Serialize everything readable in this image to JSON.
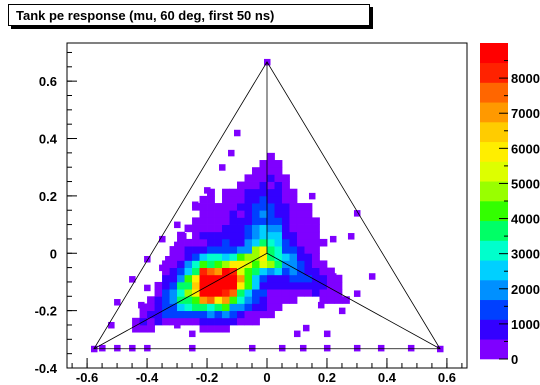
{
  "chart_data": {
    "type": "heatmap",
    "title": "Tank pe response (mu, 60 deg, first 50 ns)",
    "xlabel": "",
    "ylabel": "",
    "xlim": [
      -0.667,
      0.667
    ],
    "ylim": [
      -0.4,
      0.733
    ],
    "x_ticks": [
      -0.6,
      -0.4,
      -0.2,
      0,
      0.2,
      0.4,
      0.6
    ],
    "y_ticks": [
      -0.4,
      -0.2,
      0,
      0.2,
      0.4,
      0.6
    ],
    "x_tick_labels": [
      "-0.6",
      "-0.4",
      "-0.2",
      "0",
      "0.2",
      "0.4",
      "0.6"
    ],
    "y_tick_labels": [
      "-0.4",
      "-0.2",
      "0",
      "0.2",
      "0.4",
      "0.6"
    ],
    "z_range": [
      0,
      9000
    ],
    "z_ticks": [
      0,
      1000,
      2000,
      3000,
      4000,
      5000,
      6000,
      7000,
      8000
    ],
    "z_tick_labels": [
      "0",
      "1000",
      "2000",
      "3000",
      "4000",
      "5000",
      "6000",
      "7000",
      "8000"
    ],
    "bin_size": 0.025,
    "colors": {
      "palette": [
        "#7f00ff",
        "#3300ff",
        "#0040ff",
        "#0090ff",
        "#00d0ff",
        "#00ffcc",
        "#00ff66",
        "#33ff00",
        "#99ff00",
        "#ddff00",
        "#ffee00",
        "#ffcc00",
        "#ff9900",
        "#ff6600",
        "#ff2200",
        "#ff0000"
      ],
      "axis": "#000000",
      "triangle": "#000000"
    },
    "triangle_vertices": [
      [
        -0.577,
        -0.333
      ],
      [
        0.577,
        -0.333
      ],
      [
        0,
        0.667
      ]
    ],
    "inner_lines": [
      [
        [
          0,
          0
        ],
        [
          -0.577,
          -0.333
        ]
      ],
      [
        [
          0,
          0
        ],
        [
          0.577,
          -0.333
        ]
      ],
      [
        [
          0,
          0
        ],
        [
          0,
          0.667
        ]
      ]
    ],
    "hotspot": {
      "x": -0.17,
      "y": -0.11,
      "peak": 9000
    },
    "scatter_bins": [
      [
        0,
        0.667,
        300
      ],
      [
        0.577,
        -0.333,
        400
      ],
      [
        -0.577,
        -0.333,
        400
      ],
      [
        -0.1,
        0.42,
        200
      ],
      [
        -0.12,
        0.35,
        200
      ],
      [
        -0.15,
        0.3,
        200
      ],
      [
        -0.2,
        0.22,
        200
      ],
      [
        -0.24,
        0.17,
        200
      ],
      [
        -0.3,
        0.1,
        200
      ],
      [
        -0.35,
        0.05,
        200
      ],
      [
        -0.4,
        -0.02,
        200
      ],
      [
        -0.45,
        -0.09,
        200
      ],
      [
        -0.5,
        -0.17,
        200
      ],
      [
        -0.52,
        -0.25,
        200
      ],
      [
        -0.55,
        -0.33,
        200
      ],
      [
        -0.5,
        -0.33,
        200
      ],
      [
        -0.45,
        -0.33,
        200
      ],
      [
        -0.4,
        -0.33,
        200
      ],
      [
        -0.25,
        -0.33,
        200
      ],
      [
        -0.05,
        -0.33,
        200
      ],
      [
        0.05,
        -0.33,
        200
      ],
      [
        0.12,
        -0.33,
        200
      ],
      [
        0.2,
        -0.33,
        200
      ],
      [
        0.3,
        -0.33,
        200
      ],
      [
        0.38,
        -0.33,
        200
      ],
      [
        0.48,
        -0.33,
        200
      ],
      [
        0.3,
        0.14,
        200
      ],
      [
        0.28,
        0.06,
        200
      ],
      [
        0.35,
        -0.08,
        200
      ],
      [
        0.3,
        -0.14,
        200
      ],
      [
        0.25,
        -0.2,
        200
      ],
      [
        0.2,
        -0.28,
        200
      ],
      [
        0.1,
        -0.28,
        200
      ],
      [
        0.13,
        -0.26,
        200
      ],
      [
        -0.3,
        0.03,
        200
      ],
      [
        -0.28,
        0.06,
        200
      ],
      [
        -0.35,
        -0.05,
        200
      ],
      [
        -0.33,
        -0.02,
        200
      ],
      [
        -0.4,
        -0.12,
        200
      ],
      [
        -0.42,
        -0.18,
        200
      ],
      [
        -0.25,
        -0.28,
        200
      ],
      [
        -0.3,
        -0.25,
        200
      ],
      [
        0.22,
        0.05,
        200
      ],
      [
        0.22,
        -0.08,
        200
      ],
      [
        0.18,
        -0.18,
        200
      ],
      [
        0.15,
        0.2,
        200
      ]
    ]
  }
}
